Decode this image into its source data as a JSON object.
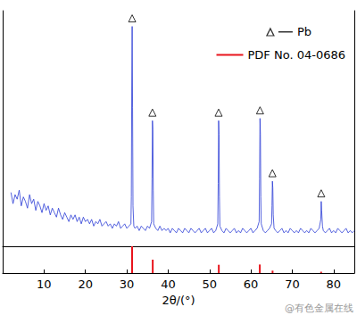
{
  "chart_data": {
    "type": "line",
    "xlabel": "2θ/(°)",
    "xlim": [
      0,
      85
    ],
    "xticks": [
      10,
      20,
      30,
      40,
      50,
      60,
      70,
      80
    ],
    "ylim": [
      0,
      105
    ],
    "y2lim": [
      0,
      100
    ],
    "tick_labels": "x",
    "grid": false,
    "legend": "upper right",
    "annotations": [
      "@有色金属在线"
    ],
    "series": [
      {
        "type": "line",
        "color": "#2a3bd6",
        "line_style": "solid",
        "x": [
          2,
          2.5,
          3,
          3.5,
          4,
          4.5,
          5,
          5.5,
          6,
          6.5,
          7,
          7.5,
          8,
          8.5,
          9,
          9.5,
          10,
          10.5,
          11,
          11.5,
          12,
          12.5,
          13,
          13.5,
          14,
          14.5,
          15,
          15.5,
          16,
          16.5,
          17,
          17.5,
          18,
          18.5,
          19,
          19.5,
          20,
          20.5,
          21,
          21.5,
          22,
          22.5,
          23,
          23.5,
          24,
          24.5,
          25,
          25.5,
          26,
          26.5,
          27,
          27.5,
          28,
          28.5,
          29,
          29.5,
          30,
          30.5,
          31,
          31.1,
          31.2,
          31.3,
          31.4,
          31.5,
          31.7,
          32,
          32.5,
          33,
          33.5,
          34,
          34.5,
          35,
          35.5,
          36,
          36.1,
          36.2,
          36.3,
          36.4,
          36.5,
          37,
          37.5,
          38,
          38.5,
          39,
          39.5,
          40,
          40.5,
          41,
          41.5,
          42,
          42.5,
          43,
          43.5,
          44,
          44.5,
          45,
          45.5,
          46,
          46.5,
          47,
          47.5,
          48,
          48.5,
          49,
          49.5,
          50,
          50.5,
          51,
          51.5,
          52,
          52.1,
          52.2,
          52.3,
          52.4,
          52.5,
          53,
          53.5,
          54,
          54.5,
          55,
          55.5,
          56,
          56.5,
          57,
          57.5,
          58,
          58.5,
          59,
          59.5,
          60,
          60.5,
          61,
          61.5,
          62,
          62.1,
          62.2,
          62.3,
          62.4,
          62.5,
          63,
          63.5,
          64,
          64.5,
          65,
          65.1,
          65.2,
          65.3,
          65.4,
          65.6,
          66,
          66.5,
          67,
          67.5,
          68,
          68.5,
          69,
          69.5,
          70,
          70.5,
          71,
          71.5,
          72,
          72.5,
          73,
          73.5,
          74,
          74.5,
          75,
          75.5,
          76,
          76.5,
          76.9,
          77,
          77.1,
          77.3,
          77.5,
          78,
          78.5,
          79,
          79.5,
          80,
          80.5,
          81,
          81.5,
          82,
          82.5,
          83,
          83.5,
          84,
          84.5,
          85
        ],
        "values": [
          24,
          19,
          23,
          21,
          25,
          18,
          22,
          20,
          17,
          23,
          19,
          21,
          16,
          20,
          18,
          15,
          19,
          16,
          18,
          14,
          17,
          15,
          13,
          17,
          14,
          12,
          15,
          13,
          11,
          14,
          12,
          14,
          11,
          13,
          10,
          13,
          11,
          12,
          10,
          12,
          9,
          11,
          10,
          12,
          9,
          10,
          11,
          9,
          10,
          8,
          10,
          9,
          11,
          8,
          9,
          10,
          8,
          9,
          10,
          22,
          70,
          98,
          62,
          18,
          9,
          8,
          9,
          7,
          9,
          8,
          7,
          9,
          8,
          11,
          30,
          56,
          52,
          25,
          10,
          8,
          7,
          9,
          7,
          8,
          7,
          8,
          6,
          8,
          7,
          6,
          8,
          7,
          6,
          8,
          7,
          6,
          8,
          7,
          6,
          7,
          8,
          6,
          7,
          8,
          6,
          7,
          8,
          6,
          7,
          10,
          28,
          56,
          50,
          22,
          9,
          7,
          6,
          8,
          7,
          6,
          7,
          8,
          6,
          7,
          6,
          8,
          7,
          6,
          7,
          8,
          6,
          7,
          8,
          11,
          30,
          57,
          50,
          22,
          10,
          7,
          6,
          7,
          8,
          10,
          18,
          29,
          26,
          14,
          8,
          7,
          6,
          7,
          8,
          6,
          7,
          6,
          8,
          7,
          6,
          7,
          6,
          8,
          7,
          6,
          7,
          6,
          8,
          7,
          6,
          7,
          8,
          12,
          20,
          16,
          9,
          7,
          6,
          7,
          8,
          6,
          7,
          6,
          8,
          7,
          6,
          7,
          8,
          6,
          7,
          6,
          7
        ]
      },
      {
        "name": "Pb",
        "type": "scatter",
        "marker": "triangle",
        "color": "#000000",
        "x": [
          31.3,
          36.2,
          52.2,
          62.2,
          65.2,
          77
        ],
        "values": [
          98,
          56,
          56,
          57,
          29,
          20
        ]
      },
      {
        "name": "PDF No. 04-0686",
        "type": "bar",
        "color": "#e8141c",
        "axis": "y2",
        "x": [
          31.28,
          36.27,
          52.24,
          62.15,
          65.24,
          76.97
        ],
        "values": [
          100,
          50,
          31,
          32,
          9,
          5
        ]
      }
    ]
  }
}
